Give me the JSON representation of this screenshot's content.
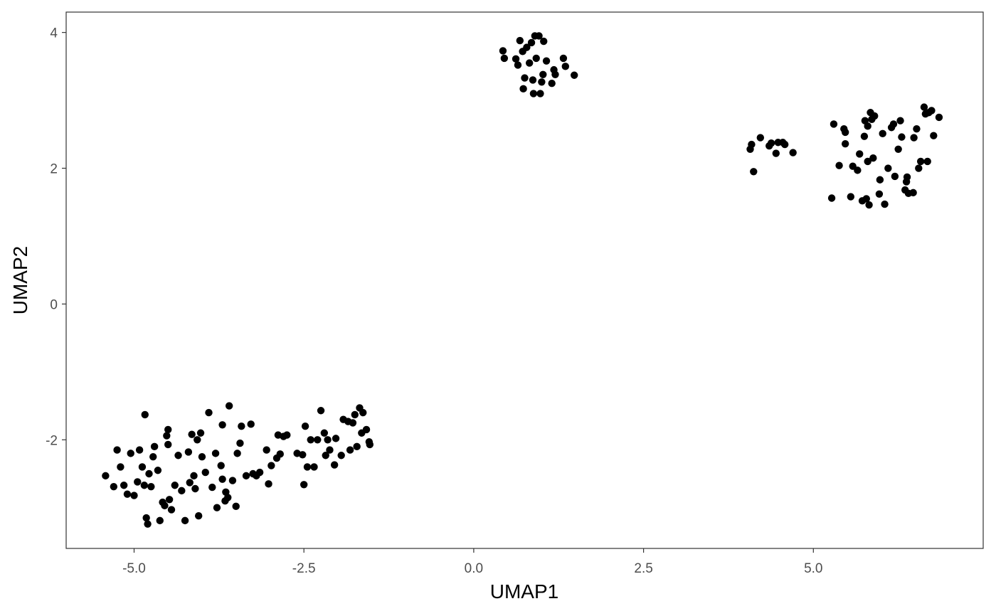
{
  "chart_data": {
    "type": "scatter",
    "title": "",
    "xlabel": "UMAP1",
    "ylabel": "UMAP2",
    "xlim": [
      -6.0,
      7.5
    ],
    "ylim": [
      -3.6,
      4.3
    ],
    "x_ticks": [
      -5.0,
      -2.5,
      0.0,
      2.5,
      5.0
    ],
    "x_tick_labels": [
      "-5.0",
      "-2.5",
      "0.0",
      "2.5",
      "5.0"
    ],
    "y_ticks": [
      -2,
      0,
      2,
      4
    ],
    "y_tick_labels": [
      "-2",
      "0",
      "2",
      "4"
    ],
    "grid": false,
    "legend": "none",
    "point_color": "#000000",
    "series": [
      {
        "name": "",
        "points": [
          [
            -5.42,
            -2.53
          ],
          [
            -5.3,
            -2.69
          ],
          [
            -5.25,
            -2.15
          ],
          [
            -5.2,
            -2.4
          ],
          [
            -5.15,
            -2.67
          ],
          [
            -5.1,
            -2.8
          ],
          [
            -5.05,
            -2.2
          ],
          [
            -5.0,
            -2.82
          ],
          [
            -4.95,
            -2.62
          ],
          [
            -4.92,
            -2.15
          ],
          [
            -4.88,
            -2.4
          ],
          [
            -4.85,
            -2.67
          ],
          [
            -4.84,
            -1.63
          ],
          [
            -4.82,
            -3.15
          ],
          [
            -4.8,
            -3.24
          ],
          [
            -4.78,
            -2.5
          ],
          [
            -4.75,
            -2.69
          ],
          [
            -4.72,
            -2.25
          ],
          [
            -4.7,
            -2.1
          ],
          [
            -4.65,
            -2.45
          ],
          [
            -4.62,
            -3.19
          ],
          [
            -4.58,
            -2.92
          ],
          [
            -4.55,
            -2.97
          ],
          [
            -4.52,
            -1.94
          ],
          [
            -4.5,
            -2.07
          ],
          [
            -4.5,
            -1.85
          ],
          [
            -4.48,
            -2.88
          ],
          [
            -4.45,
            -3.03
          ],
          [
            -4.4,
            -2.67
          ],
          [
            -4.35,
            -2.23
          ],
          [
            -4.3,
            -2.75
          ],
          [
            -4.25,
            -3.19
          ],
          [
            -4.2,
            -2.18
          ],
          [
            -4.18,
            -2.63
          ],
          [
            -4.15,
            -1.92
          ],
          [
            -4.12,
            -2.53
          ],
          [
            -4.1,
            -2.72
          ],
          [
            -4.07,
            -2.0
          ],
          [
            -4.05,
            -3.12
          ],
          [
            -4.02,
            -1.9
          ],
          [
            -4.0,
            -2.25
          ],
          [
            -3.95,
            -2.48
          ],
          [
            -3.9,
            -1.6
          ],
          [
            -3.85,
            -2.7
          ],
          [
            -3.8,
            -2.2
          ],
          [
            -3.78,
            -3.0
          ],
          [
            -3.72,
            -2.38
          ],
          [
            -3.7,
            -2.58
          ],
          [
            -3.7,
            -1.78
          ],
          [
            -3.66,
            -2.9
          ],
          [
            -3.65,
            -2.77
          ],
          [
            -3.62,
            -2.85
          ],
          [
            -3.6,
            -1.5
          ],
          [
            -3.55,
            -2.6
          ],
          [
            -3.5,
            -2.98
          ],
          [
            -3.48,
            -2.2
          ],
          [
            -3.44,
            -2.05
          ],
          [
            -3.42,
            -1.8
          ],
          [
            -3.35,
            -2.53
          ],
          [
            -3.28,
            -1.77
          ],
          [
            -3.25,
            -2.5
          ],
          [
            -3.2,
            -2.53
          ],
          [
            -3.15,
            -2.48
          ],
          [
            -3.05,
            -2.15
          ],
          [
            -3.02,
            -2.65
          ],
          [
            -2.98,
            -2.38
          ],
          [
            -2.9,
            -2.27
          ],
          [
            -2.88,
            -1.93
          ],
          [
            -2.85,
            -2.21
          ],
          [
            -2.8,
            -1.95
          ],
          [
            -2.75,
            -1.93
          ],
          [
            -2.6,
            -2.2
          ],
          [
            -2.52,
            -2.22
          ],
          [
            -2.5,
            -2.66
          ],
          [
            -2.48,
            -1.8
          ],
          [
            -2.45,
            -2.4
          ],
          [
            -2.4,
            -2.0
          ],
          [
            -2.35,
            -2.4
          ],
          [
            -2.3,
            -2.0
          ],
          [
            -2.25,
            -1.57
          ],
          [
            -2.2,
            -1.9
          ],
          [
            -2.18,
            -2.23
          ],
          [
            -2.15,
            -2.0
          ],
          [
            -2.12,
            -2.15
          ],
          [
            -2.05,
            -2.37
          ],
          [
            -2.03,
            -1.98
          ],
          [
            -1.95,
            -2.23
          ],
          [
            -1.92,
            -1.7
          ],
          [
            -1.85,
            -1.73
          ],
          [
            -1.82,
            -2.15
          ],
          [
            -1.78,
            -1.75
          ],
          [
            -1.75,
            -1.63
          ],
          [
            -1.72,
            -2.1
          ],
          [
            -1.68,
            -1.53
          ],
          [
            -1.65,
            -1.9
          ],
          [
            -1.63,
            -1.6
          ],
          [
            -1.58,
            -1.85
          ],
          [
            -1.54,
            -2.03
          ],
          [
            -1.53,
            -2.07
          ],
          [
            0.43,
            3.73
          ],
          [
            0.45,
            3.62
          ],
          [
            0.62,
            3.61
          ],
          [
            0.65,
            3.52
          ],
          [
            0.68,
            3.88
          ],
          [
            0.72,
            3.72
          ],
          [
            0.73,
            3.17
          ],
          [
            0.75,
            3.33
          ],
          [
            0.78,
            3.78
          ],
          [
            0.82,
            3.55
          ],
          [
            0.85,
            3.85
          ],
          [
            0.87,
            3.3
          ],
          [
            0.88,
            3.1
          ],
          [
            0.9,
            3.95
          ],
          [
            0.92,
            3.62
          ],
          [
            0.96,
            3.95
          ],
          [
            0.98,
            3.1
          ],
          [
            1.0,
            3.27
          ],
          [
            1.02,
            3.38
          ],
          [
            1.03,
            3.87
          ],
          [
            1.07,
            3.58
          ],
          [
            1.15,
            3.25
          ],
          [
            1.18,
            3.45
          ],
          [
            1.2,
            3.38
          ],
          [
            1.32,
            3.62
          ],
          [
            1.35,
            3.5
          ],
          [
            1.48,
            3.37
          ],
          [
            4.07,
            2.28
          ],
          [
            4.09,
            2.35
          ],
          [
            4.12,
            1.95
          ],
          [
            4.22,
            2.45
          ],
          [
            4.35,
            2.33
          ],
          [
            4.38,
            2.37
          ],
          [
            4.45,
            2.22
          ],
          [
            4.48,
            2.38
          ],
          [
            4.55,
            2.38
          ],
          [
            4.58,
            2.35
          ],
          [
            4.7,
            2.23
          ],
          [
            5.27,
            1.56
          ],
          [
            5.3,
            2.65
          ],
          [
            5.38,
            2.04
          ],
          [
            5.45,
            2.58
          ],
          [
            5.47,
            2.53
          ],
          [
            5.47,
            2.36
          ],
          [
            5.55,
            1.58
          ],
          [
            5.58,
            2.03
          ],
          [
            5.65,
            1.97
          ],
          [
            5.68,
            2.21
          ],
          [
            5.72,
            1.52
          ],
          [
            5.75,
            2.47
          ],
          [
            5.76,
            2.7
          ],
          [
            5.78,
            1.55
          ],
          [
            5.8,
            2.62
          ],
          [
            5.8,
            2.1
          ],
          [
            5.82,
            1.46
          ],
          [
            5.84,
            2.82
          ],
          [
            5.86,
            2.72
          ],
          [
            5.88,
            2.15
          ],
          [
            5.9,
            2.77
          ],
          [
            5.97,
            1.62
          ],
          [
            5.98,
            1.83
          ],
          [
            6.02,
            2.51
          ],
          [
            6.05,
            1.47
          ],
          [
            6.1,
            2.0
          ],
          [
            6.15,
            2.6
          ],
          [
            6.18,
            2.65
          ],
          [
            6.2,
            1.88
          ],
          [
            6.25,
            2.28
          ],
          [
            6.28,
            2.7
          ],
          [
            6.3,
            2.46
          ],
          [
            6.35,
            1.68
          ],
          [
            6.37,
            1.8
          ],
          [
            6.38,
            1.87
          ],
          [
            6.4,
            1.63
          ],
          [
            6.47,
            1.64
          ],
          [
            6.48,
            2.45
          ],
          [
            6.52,
            2.58
          ],
          [
            6.55,
            2.0
          ],
          [
            6.58,
            2.1
          ],
          [
            6.63,
            2.9
          ],
          [
            6.65,
            2.8
          ],
          [
            6.68,
            2.1
          ],
          [
            6.7,
            2.82
          ],
          [
            6.74,
            2.85
          ],
          [
            6.77,
            2.48
          ],
          [
            6.85,
            2.75
          ]
        ]
      }
    ]
  }
}
